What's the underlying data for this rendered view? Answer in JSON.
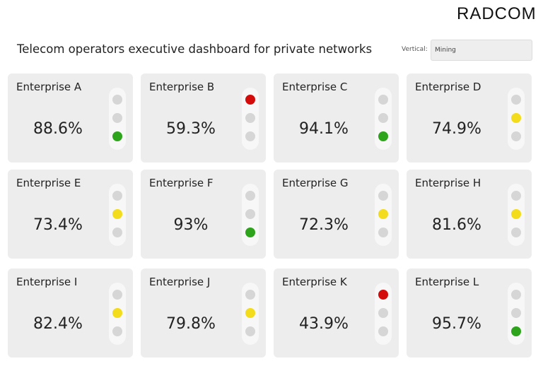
{
  "header": {
    "logo": "RADCOM",
    "title": "Telecom operators executive dashboard for private networks",
    "vertical_label": "Vertical:",
    "vertical_value": "Mining"
  },
  "colors": {
    "red": "#d40b0b",
    "yellow": "#f2dc1b",
    "green": "#2ea31c",
    "off": "#d6d6d6",
    "card_bg": "#eeeded"
  },
  "enterprises": [
    {
      "name": "Enterprise A",
      "value": "88.6%",
      "status": "green"
    },
    {
      "name": "Enterprise B",
      "value": "59.3%",
      "status": "red"
    },
    {
      "name": "Enterprise C",
      "value": "94.1%",
      "status": "green"
    },
    {
      "name": "Enterprise D",
      "value": "74.9%",
      "status": "yellow"
    },
    {
      "name": "Enterprise E",
      "value": "73.4%",
      "status": "yellow"
    },
    {
      "name": "Enterprise F",
      "value": "93%",
      "status": "green"
    },
    {
      "name": "Enterprise G",
      "value": "72.3%",
      "status": "yellow"
    },
    {
      "name": "Enterprise H",
      "value": "81.6%",
      "status": "yellow"
    },
    {
      "name": "Enterprise I",
      "value": "82.4%",
      "status": "yellow"
    },
    {
      "name": "Enterprise J",
      "value": "79.8%",
      "status": "yellow"
    },
    {
      "name": "Enterprise K",
      "value": "43.9%",
      "status": "red"
    },
    {
      "name": "Enterprise L",
      "value": "95.7%",
      "status": "green"
    }
  ]
}
